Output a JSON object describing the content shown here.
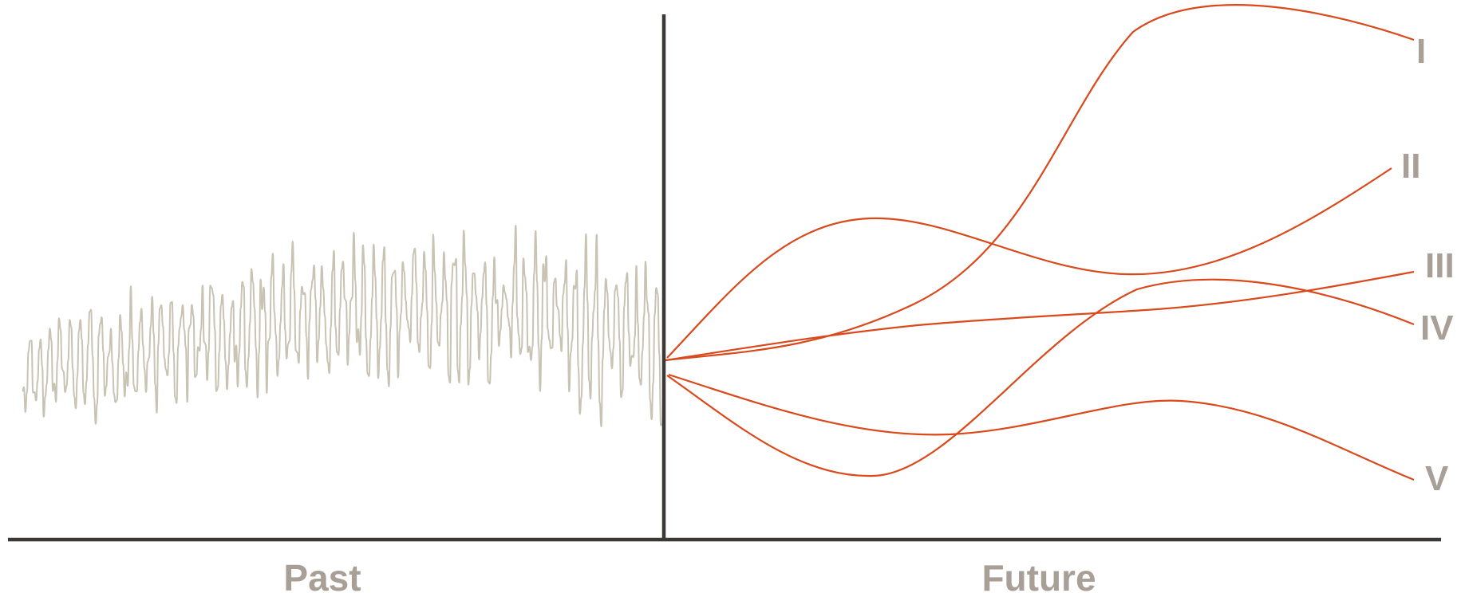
{
  "labels": {
    "past": "Past",
    "future": "Future"
  },
  "scenarios": [
    {
      "id": "I",
      "label": "I"
    },
    {
      "id": "II",
      "label": "II"
    },
    {
      "id": "III",
      "label": "III"
    },
    {
      "id": "IV",
      "label": "IV"
    },
    {
      "id": "V",
      "label": "V"
    }
  ],
  "colors": {
    "axis": "#3b3835",
    "history": "#c9c3b4",
    "scenario": "#d9491b",
    "label": "#a89f96"
  }
}
